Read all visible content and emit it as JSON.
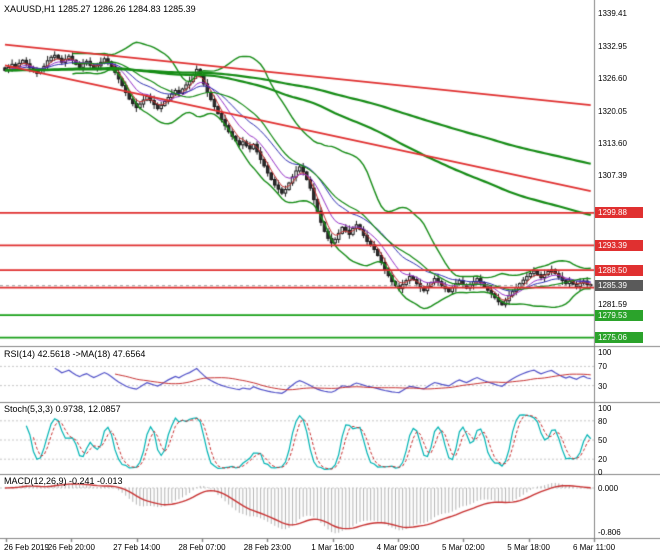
{
  "window": {
    "title": "XAUUSD,H1 1285.27 1286.26 1284.83 1285.39"
  },
  "colors": {
    "bull": "#f8f8f8",
    "bear": "#2e2e2e",
    "outline": "#1a1a1a",
    "bands": "#168c16",
    "ma_fast": "#c83232",
    "ma_mid": "#9632c8",
    "ma_blue": "#3232b4",
    "resistance": "#e03030",
    "support": "#18a018",
    "badge_red": "#e03030",
    "badge_green": "#2ba32b",
    "badge_current": "#5a5a5a",
    "rsi": "#5050c8",
    "rsi_ma": "#c83232",
    "stoch_k": "#00b4b4",
    "stoch_d": "#c83232",
    "macd_hist": "#b4b4b4",
    "macd_signal": "#c83232",
    "grid": "#c8c8c8",
    "separator": "#858585",
    "current_line": "#9a9a9a"
  },
  "chart_data": [
    {
      "type": "candlestick",
      "title": "XAUUSD,H1 1285.27 1286.26 1284.83 1285.39",
      "symbol": "XAUUSD",
      "timeframe": "H1",
      "ohlc_display": {
        "open": "1285.27",
        "high": "1286.26",
        "low": "1284.83",
        "close": "1285.39"
      },
      "y_range": [
        1273.8,
        1340.6
      ],
      "closes": [
        1328.2,
        1328.8,
        1329.4,
        1328.9,
        1329.6,
        1330.2,
        1329.5,
        1328.7,
        1328.1,
        1327.6,
        1328.3,
        1329.0,
        1330.1,
        1330.8,
        1331.2,
        1330.6,
        1329.8,
        1330.4,
        1331.0,
        1330.2,
        1329.4,
        1328.8,
        1329.5,
        1330.0,
        1329.2,
        1328.5,
        1329.1,
        1329.8,
        1330.5,
        1329.9,
        1329.0,
        1327.8,
        1326.5,
        1325.2,
        1323.8,
        1322.5,
        1321.6,
        1320.8,
        1321.5,
        1322.3,
        1323.0,
        1322.2,
        1321.4,
        1320.6,
        1321.2,
        1322.0,
        1322.8,
        1323.5,
        1324.2,
        1323.6,
        1324.5,
        1325.3,
        1326.0,
        1327.2,
        1328.4,
        1327.0,
        1325.5,
        1323.8,
        1322.4,
        1321.0,
        1319.6,
        1318.4,
        1317.2,
        1316.0,
        1315.1,
        1314.2,
        1313.4,
        1314.0,
        1313.2,
        1312.6,
        1313.5,
        1312.0,
        1310.5,
        1309.2,
        1307.8,
        1306.5,
        1305.4,
        1304.6,
        1303.8,
        1304.5,
        1305.8,
        1307.0,
        1308.2,
        1309.0,
        1308.0,
        1306.5,
        1304.8,
        1302.5,
        1300.2,
        1298.0,
        1296.2,
        1294.8,
        1293.9,
        1294.6,
        1295.8,
        1297.0,
        1296.4,
        1295.6,
        1296.8,
        1297.5,
        1296.6,
        1295.4,
        1294.2,
        1293.5,
        1292.6,
        1291.4,
        1290.0,
        1288.6,
        1287.4,
        1286.2,
        1285.4,
        1284.8,
        1285.6,
        1286.4,
        1287.2,
        1286.6,
        1285.8,
        1285.0,
        1284.4,
        1285.2,
        1286.0,
        1286.8,
        1286.2,
        1285.4,
        1284.8,
        1284.2,
        1285.0,
        1285.8,
        1286.4,
        1285.6,
        1284.9,
        1285.5,
        1286.2,
        1286.8,
        1286.0,
        1285.2,
        1284.5,
        1283.8,
        1283.0,
        1282.2,
        1281.6,
        1282.4,
        1283.4,
        1284.2,
        1285.0,
        1285.8,
        1286.5,
        1287.2,
        1287.8,
        1288.3,
        1287.6,
        1287.0,
        1287.6,
        1288.2,
        1288.6,
        1287.8,
        1287.1,
        1286.4,
        1285.8,
        1286.3,
        1285.7,
        1285.2,
        1285.9,
        1286.3,
        1285.6,
        1285.39
      ],
      "axis_ticks": [
        {
          "label": "1339.41",
          "value": 1339.41
        },
        {
          "label": "1332.95",
          "value": 1332.95
        },
        {
          "label": "1326.60",
          "value": 1326.6
        },
        {
          "label": "1320.05",
          "value": 1320.05
        },
        {
          "label": "1313.60",
          "value": 1313.6
        },
        {
          "label": "1307.39",
          "value": 1307.39
        },
        {
          "label": "1281.59",
          "value": 1281.59
        }
      ],
      "price_badges": [
        {
          "label": "1299.88",
          "value": 1299.88,
          "kind": "resistance"
        },
        {
          "label": "1293.39",
          "value": 1293.39,
          "kind": "resistance"
        },
        {
          "label": "1288.50",
          "value": 1288.5,
          "kind": "resistance"
        },
        {
          "label": "1285.39",
          "value": 1285.39,
          "kind": "current"
        },
        {
          "label": "1279.53",
          "value": 1279.53,
          "kind": "support"
        },
        {
          "label": "1275.06",
          "value": 1275.06,
          "kind": "support"
        }
      ],
      "red_horizontals": [
        1299.88,
        1293.39,
        1288.5,
        1285.0
      ],
      "green_horizontals": [
        1279.53,
        1275.06
      ],
      "red_diagonals": [
        {
          "from": [
            0,
            1333.3
          ],
          "to": [
            165,
            1321.3
          ]
        },
        {
          "from": [
            0,
            1329.2
          ],
          "to": [
            165,
            1304.2
          ]
        }
      ],
      "current_price": 1285.39,
      "overlays": {
        "bollinger": {
          "period": 20,
          "dev": 2
        },
        "ema_ribbon": [
          4,
          9,
          18
        ],
        "ema_slow": [
          150,
          300
        ]
      },
      "x_labels": [
        "26 Feb 2019",
        "26 Feb 20:00",
        "27 Feb 14:00",
        "28 Feb 07:00",
        "28 Feb 23:00",
        "1 Mar 16:00",
        "4 Mar 09:00",
        "5 Mar 02:00",
        "5 Mar 18:00",
        "6 Mar 11:00"
      ]
    },
    {
      "type": "line",
      "name": "RSI",
      "label": "RSI(14) 42.5618  ->MA(18) 47.6564",
      "period": 14,
      "ma_period": 18,
      "range": [
        0,
        100
      ],
      "ticks": [
        100,
        70,
        30
      ],
      "grid": [
        70,
        30
      ]
    },
    {
      "type": "line",
      "name": "Stochastic",
      "label": "Stoch(5,3,3) 0.9738, 12.0857",
      "k": 5,
      "slowing": 3,
      "d": 3,
      "range": [
        0,
        100
      ],
      "ticks": [
        100,
        80,
        50,
        20,
        0
      ],
      "grid": [
        80,
        50,
        20
      ]
    },
    {
      "type": "macd",
      "name": "MACD",
      "label": "MACD(12,26,9) -0.241 -0.013",
      "fast": 12,
      "slow": 26,
      "signal": 9,
      "axis_labels": [
        "0.000",
        "-0.806"
      ]
    }
  ]
}
